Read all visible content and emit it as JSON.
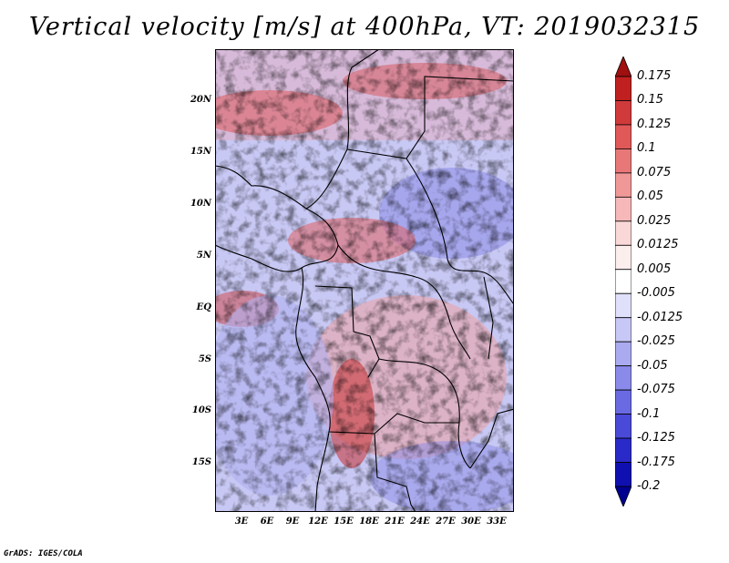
{
  "title": "Vertical velocity [m/s] at 400hPa, VT: 2019032315",
  "credit": "GrADS: IGES/COLA",
  "map": {
    "lat_labels": [
      "20N",
      "15N",
      "10N",
      "5N",
      "EQ",
      "5S",
      "10S",
      "15S"
    ],
    "lon_labels": [
      "3E",
      "6E",
      "9E",
      "12E",
      "15E",
      "18E",
      "21E",
      "24E",
      "27E",
      "30E",
      "33E"
    ]
  },
  "colorbar": {
    "labels": [
      "0.175",
      "0.15",
      "0.125",
      "0.1",
      "0.075",
      "0.05",
      "0.025",
      "0.0125",
      "0.005",
      "-0.005",
      "-0.0125",
      "-0.025",
      "-0.05",
      "-0.075",
      "-0.1",
      "-0.125",
      "-0.175",
      "-0.2"
    ],
    "colors": [
      "#a01010",
      "#c02020",
      "#d03a3a",
      "#e05858",
      "#e87878",
      "#f09898",
      "#f6b8b8",
      "#fad8d8",
      "#fdeeee",
      "#ffffff",
      "#e0e0fa",
      "#c8c8f6",
      "#aaaaf0",
      "#8a8aea",
      "#6a6ae2",
      "#4a4ad8",
      "#2a2ac8",
      "#1010b0",
      "#000090"
    ]
  },
  "style": {
    "red": "#d02020",
    "blue": "#3030d0"
  }
}
